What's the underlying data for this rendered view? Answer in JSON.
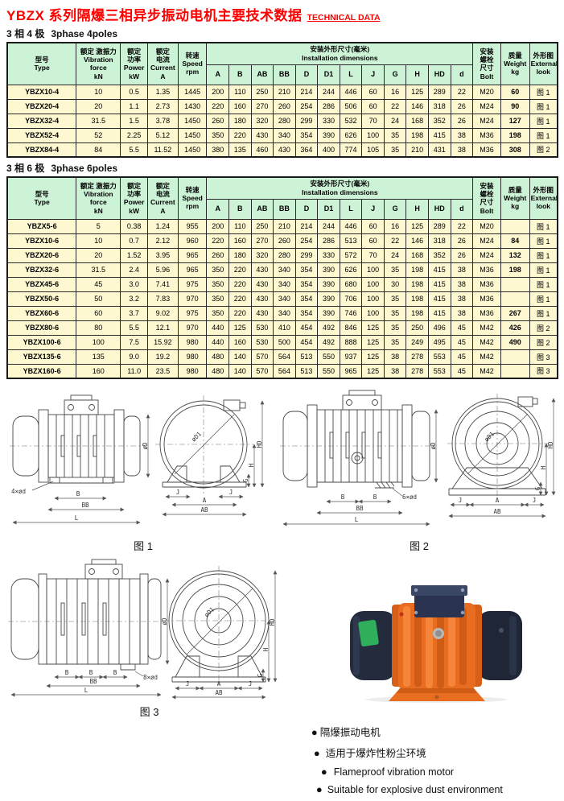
{
  "page": {
    "title_cn": "YBZX 系列隔爆三相异步振动电机主要技术数据",
    "title_en": "TECHNICAL DATA"
  },
  "sections": {
    "poles4": {
      "label_cn": "3 相 4 极",
      "label_en": "3phase 4poles"
    },
    "poles6": {
      "label_cn": "3 相 6 极",
      "label_en": "3phase 6poles"
    }
  },
  "table_header": {
    "model": "型号\nType",
    "force": "额定 激振力\nVibration\nforce\nkN",
    "power": "额定\n功率\nPower\nkW",
    "current": "额定\n电流\nCurrent\nA",
    "speed": "转速\nSpeed\nrpm",
    "dims_group": "安装外形尺寸(毫米)\nInstallation dimensions",
    "dims": [
      "A",
      "B",
      "AB",
      "BB",
      "D",
      "D1",
      "L",
      "J",
      "G",
      "H",
      "HD",
      "d"
    ],
    "bolt": "安装\n螺栓\n尺寸\nBolt",
    "weight": "质量\nWeight\nkg",
    "look": "外形图\nExternal\nlook"
  },
  "tables": {
    "poles4": {
      "rows": [
        [
          "YBZX10-4",
          "10",
          "0.5",
          "1.35",
          "1445",
          "200",
          "110",
          "250",
          "210",
          "214",
          "244",
          "446",
          "60",
          "16",
          "125",
          "289",
          "22",
          "M20",
          "60",
          "图 1"
        ],
        [
          "YBZX20-4",
          "20",
          "1.1",
          "2.73",
          "1430",
          "220",
          "160",
          "270",
          "260",
          "254",
          "286",
          "506",
          "60",
          "22",
          "146",
          "318",
          "26",
          "M24",
          "90",
          "图 1"
        ],
        [
          "YBZX32-4",
          "31.5",
          "1.5",
          "3.78",
          "1450",
          "260",
          "180",
          "320",
          "280",
          "299",
          "330",
          "532",
          "70",
          "24",
          "168",
          "352",
          "26",
          "M24",
          "127",
          "图 1"
        ],
        [
          "YBZX52-4",
          "52",
          "2.25",
          "5.12",
          "1450",
          "350",
          "220",
          "430",
          "340",
          "354",
          "390",
          "626",
          "100",
          "35",
          "198",
          "415",
          "38",
          "M36",
          "198",
          "图 1"
        ],
        [
          "YBZX84-4",
          "84",
          "5.5",
          "11.52",
          "1450",
          "380",
          "135",
          "460",
          "430",
          "364",
          "400",
          "774",
          "105",
          "35",
          "210",
          "431",
          "38",
          "M36",
          "308",
          "图 2"
        ]
      ]
    },
    "poles6": {
      "rows": [
        [
          "YBZX5-6",
          "5",
          "0.38",
          "1.24",
          "955",
          "200",
          "110",
          "250",
          "210",
          "214",
          "244",
          "446",
          "60",
          "16",
          "125",
          "289",
          "22",
          "M20",
          "",
          "图 1"
        ],
        [
          "YBZX10-6",
          "10",
          "0.7",
          "2.12",
          "960",
          "220",
          "160",
          "270",
          "260",
          "254",
          "286",
          "513",
          "60",
          "22",
          "146",
          "318",
          "26",
          "M24",
          "84",
          "图 1"
        ],
        [
          "YBZX20-6",
          "20",
          "1.52",
          "3.95",
          "965",
          "260",
          "180",
          "320",
          "280",
          "299",
          "330",
          "572",
          "70",
          "24",
          "168",
          "352",
          "26",
          "M24",
          "132",
          "图 1"
        ],
        [
          "YBZX32-6",
          "31.5",
          "2.4",
          "5.96",
          "965",
          "350",
          "220",
          "430",
          "340",
          "354",
          "390",
          "626",
          "100",
          "35",
          "198",
          "415",
          "38",
          "M36",
          "198",
          "图 1"
        ],
        [
          "YBZX45-6",
          "45",
          "3.0",
          "7.41",
          "975",
          "350",
          "220",
          "430",
          "340",
          "354",
          "390",
          "680",
          "100",
          "30",
          "198",
          "415",
          "38",
          "M36",
          "",
          "图 1"
        ],
        [
          "YBZX50-6",
          "50",
          "3.2",
          "7.83",
          "970",
          "350",
          "220",
          "430",
          "340",
          "354",
          "390",
          "706",
          "100",
          "35",
          "198",
          "415",
          "38",
          "M36",
          "",
          "图 1"
        ],
        [
          "YBZX60-6",
          "60",
          "3.7",
          "9.02",
          "975",
          "350",
          "220",
          "430",
          "340",
          "354",
          "390",
          "746",
          "100",
          "35",
          "198",
          "415",
          "38",
          "M36",
          "267",
          "图 1"
        ],
        [
          "YBZX80-6",
          "80",
          "5.5",
          "12.1",
          "970",
          "440",
          "125",
          "530",
          "410",
          "454",
          "492",
          "846",
          "125",
          "35",
          "250",
          "496",
          "45",
          "M42",
          "426",
          "图 2"
        ],
        [
          "YBZX100-6",
          "100",
          "7.5",
          "15.92",
          "980",
          "440",
          "160",
          "530",
          "500",
          "454",
          "492",
          "888",
          "125",
          "35",
          "249",
          "495",
          "45",
          "M42",
          "490",
          "图 2"
        ],
        [
          "YBZX135-6",
          "135",
          "9.0",
          "19.2",
          "980",
          "480",
          "140",
          "570",
          "564",
          "513",
          "550",
          "937",
          "125",
          "38",
          "278",
          "553",
          "45",
          "M42",
          "",
          "图 3"
        ],
        [
          "YBZX160-6",
          "160",
          "11.0",
          "23.5",
          "980",
          "480",
          "140",
          "570",
          "564",
          "513",
          "550",
          "965",
          "125",
          "38",
          "278",
          "553",
          "45",
          "M42",
          "",
          "图 3"
        ]
      ]
    }
  },
  "figures": {
    "fig1_caption": "图 1",
    "fig2_caption": "图 2",
    "fig3_caption": "图 3",
    "dim_labels": {
      "bolt4": "4×ød",
      "bolt6": "6×ød",
      "bolt8": "8×ød",
      "B": "B",
      "BB": "BB",
      "L": "L",
      "A": "A",
      "AB": "AB",
      "J": "J",
      "D": "øD",
      "D1": "øD1",
      "HD": "HD",
      "H": "H",
      "G": "G"
    }
  },
  "features": {
    "bullet": "●",
    "items": [
      {
        "text": "隔爆振动电机"
      },
      {
        "text": "适用于爆炸性粉尘环境"
      },
      {
        "text": "Flameproof vibration motor"
      },
      {
        "text": "Suitable for explosive dust environment"
      }
    ]
  },
  "colors": {
    "title_red": "#ff0000",
    "table_header_green": "#cdf3d7",
    "table_row_yellow": "#fdf8d0",
    "motor_orange": "#e96d20",
    "motor_navy": "#232b3d",
    "sticker_green": "#2fae5c"
  }
}
